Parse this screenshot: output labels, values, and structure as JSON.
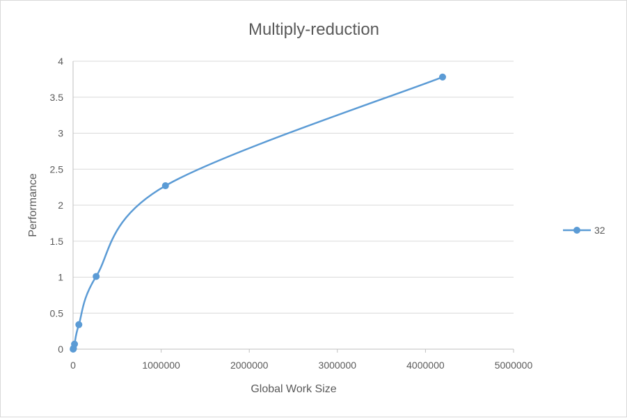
{
  "chart_data": {
    "type": "line",
    "title": "Multiply-reduction",
    "xlabel": "Global Work Size",
    "ylabel": "Performance",
    "xlim": [
      0,
      5000000
    ],
    "ylim": [
      0,
      4
    ],
    "x_ticks": [
      0,
      1000000,
      2000000,
      3000000,
      4000000,
      5000000
    ],
    "x_tick_labels": [
      "0",
      "1000000",
      "2000000",
      "3000000",
      "4000000",
      "5000000"
    ],
    "y_ticks": [
      0,
      0.5,
      1,
      1.5,
      2,
      2.5,
      3,
      3.5,
      4
    ],
    "y_tick_labels": [
      "0",
      "0.5",
      "1",
      "1.5",
      "2",
      "2.5",
      "3",
      "3.5",
      "4"
    ],
    "grid": "horizontal",
    "legend_position": "right",
    "smooth": true,
    "series": [
      {
        "name": "32",
        "color": "#5b9bd5",
        "x": [
          1024,
          4096,
          16384,
          65536,
          262144,
          1048576,
          4194304
        ],
        "y": [
          0.0,
          0.01,
          0.07,
          0.34,
          1.01,
          2.27,
          3.78
        ]
      }
    ]
  }
}
